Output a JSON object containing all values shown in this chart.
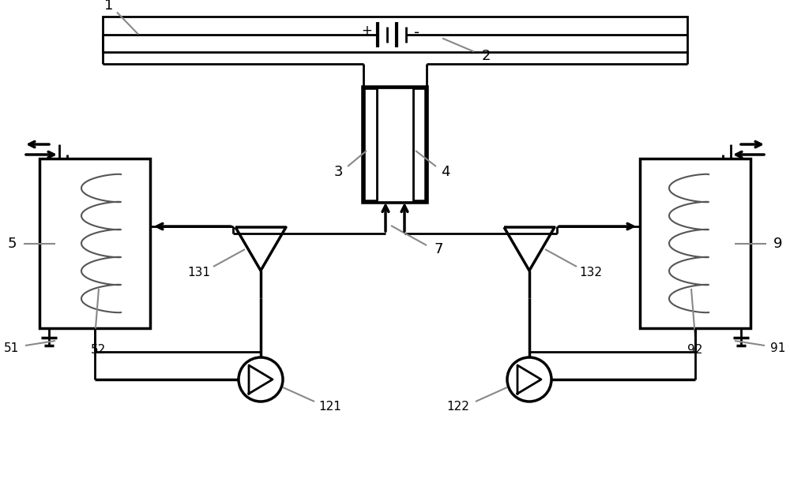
{
  "bg_color": "#ffffff",
  "line_color": "#000000",
  "gray_color": "#888888",
  "fig_width": 10.0,
  "fig_height": 6.11
}
